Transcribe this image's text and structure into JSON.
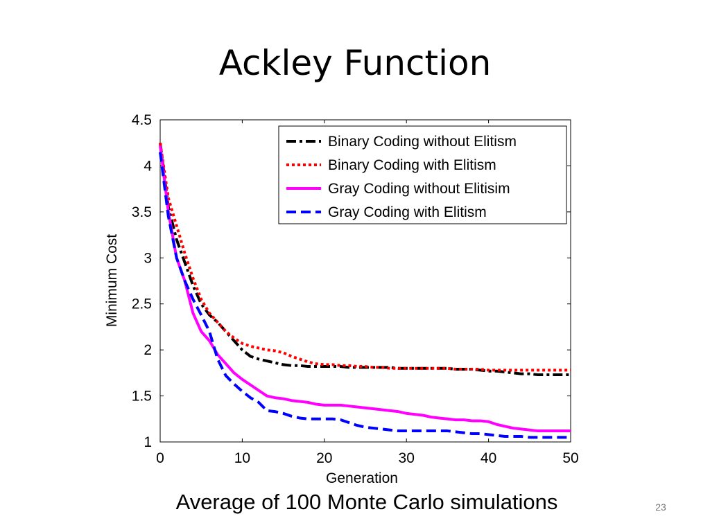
{
  "slide": {
    "title": "Ackley Function",
    "caption": "Average of 100 Monte Carlo simulations",
    "page_number": "23"
  },
  "chart_data": {
    "type": "line",
    "title": "",
    "xlabel": "Generation",
    "ylabel": "Minimum Cost",
    "xlim": [
      0,
      50
    ],
    "ylim": [
      1,
      4.5
    ],
    "xticks": [
      0,
      10,
      20,
      30,
      40,
      50
    ],
    "yticks": [
      1,
      1.5,
      2,
      2.5,
      3,
      3.5,
      4,
      4.5
    ],
    "xtick_labels": [
      "0",
      "10",
      "20",
      "30",
      "40",
      "50"
    ],
    "ytick_labels": [
      "1",
      "1.5",
      "2",
      "2.5",
      "3",
      "3.5",
      "4",
      "4.5"
    ],
    "grid": false,
    "legend_position": "top-right",
    "x": [
      0,
      1,
      2,
      3,
      4,
      5,
      6,
      7,
      8,
      9,
      10,
      11,
      12,
      13,
      14,
      15,
      16,
      17,
      18,
      19,
      20,
      21,
      22,
      23,
      24,
      25,
      26,
      27,
      28,
      29,
      30,
      31,
      32,
      33,
      34,
      35,
      36,
      37,
      38,
      39,
      40,
      41,
      42,
      43,
      44,
      45,
      46,
      47,
      48,
      49,
      50
    ],
    "series": [
      {
        "name": "Binary Coding without Elitism",
        "color": "#000000",
        "style": "dashdot",
        "values": [
          4.25,
          3.55,
          3.2,
          2.95,
          2.7,
          2.5,
          2.38,
          2.3,
          2.2,
          2.1,
          2.0,
          1.93,
          1.9,
          1.88,
          1.86,
          1.84,
          1.83,
          1.83,
          1.82,
          1.82,
          1.82,
          1.82,
          1.82,
          1.81,
          1.81,
          1.81,
          1.81,
          1.81,
          1.81,
          1.8,
          1.8,
          1.8,
          1.8,
          1.8,
          1.8,
          1.8,
          1.79,
          1.79,
          1.79,
          1.78,
          1.77,
          1.77,
          1.76,
          1.75,
          1.74,
          1.74,
          1.73,
          1.73,
          1.73,
          1.73,
          1.73
        ]
      },
      {
        "name": "Binary Coding with Elitism",
        "color": "#ff0000",
        "style": "dotted",
        "values": [
          4.25,
          3.65,
          3.35,
          3.05,
          2.78,
          2.55,
          2.4,
          2.3,
          2.2,
          2.13,
          2.07,
          2.04,
          2.02,
          2.0,
          1.99,
          1.97,
          1.93,
          1.9,
          1.87,
          1.85,
          1.84,
          1.84,
          1.83,
          1.83,
          1.82,
          1.82,
          1.81,
          1.81,
          1.8,
          1.8,
          1.8,
          1.8,
          1.8,
          1.8,
          1.8,
          1.8,
          1.79,
          1.79,
          1.79,
          1.79,
          1.78,
          1.78,
          1.78,
          1.78,
          1.78,
          1.78,
          1.78,
          1.78,
          1.78,
          1.78,
          1.78
        ]
      },
      {
        "name": "Gray Coding without Elitisim",
        "color": "#ff00ff",
        "style": "solid",
        "values": [
          4.22,
          3.5,
          3.0,
          2.75,
          2.4,
          2.2,
          2.1,
          1.95,
          1.85,
          1.75,
          1.68,
          1.62,
          1.56,
          1.5,
          1.48,
          1.47,
          1.45,
          1.44,
          1.43,
          1.41,
          1.4,
          1.4,
          1.4,
          1.39,
          1.38,
          1.37,
          1.36,
          1.35,
          1.34,
          1.33,
          1.31,
          1.3,
          1.29,
          1.27,
          1.26,
          1.25,
          1.24,
          1.24,
          1.23,
          1.23,
          1.22,
          1.19,
          1.17,
          1.15,
          1.14,
          1.13,
          1.12,
          1.12,
          1.12,
          1.12,
          1.12
        ]
      },
      {
        "name": "Gray Coding with Elitism",
        "color": "#0000ff",
        "style": "dashed",
        "values": [
          4.15,
          3.45,
          3.0,
          2.75,
          2.55,
          2.38,
          2.2,
          1.9,
          1.72,
          1.63,
          1.55,
          1.48,
          1.43,
          1.34,
          1.33,
          1.31,
          1.28,
          1.26,
          1.25,
          1.25,
          1.25,
          1.25,
          1.24,
          1.21,
          1.18,
          1.16,
          1.15,
          1.14,
          1.13,
          1.12,
          1.12,
          1.12,
          1.12,
          1.12,
          1.12,
          1.12,
          1.11,
          1.1,
          1.09,
          1.09,
          1.08,
          1.07,
          1.06,
          1.06,
          1.06,
          1.05,
          1.05,
          1.05,
          1.05,
          1.05,
          1.05
        ]
      }
    ]
  }
}
